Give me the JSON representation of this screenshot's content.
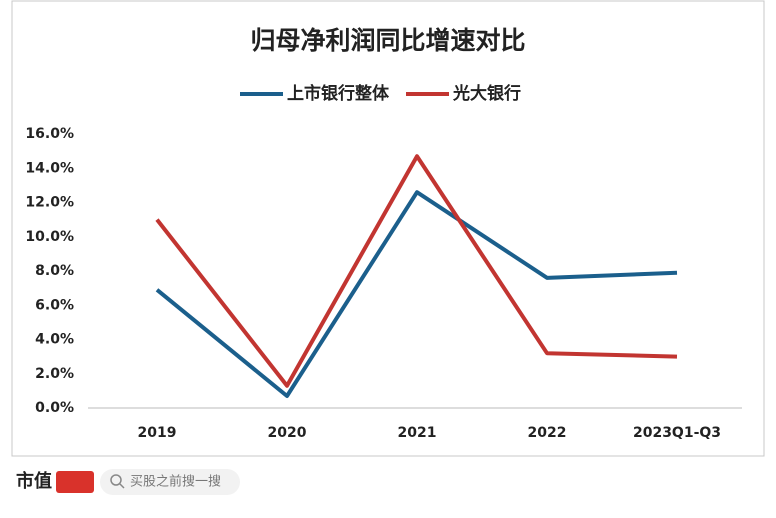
{
  "chart_data": {
    "type": "line",
    "title": "归母净利润同比增速对比",
    "categories": [
      "2019",
      "2020",
      "2021",
      "2022",
      "2023Q1-Q3"
    ],
    "series": [
      {
        "name": "上市银行整体",
        "color": "#1b5f8c",
        "values": [
          6.9,
          0.7,
          12.6,
          7.6,
          7.9
        ]
      },
      {
        "name": "光大银行",
        "color": "#c23531",
        "values": [
          11.0,
          1.3,
          14.7,
          3.2,
          3.0
        ]
      }
    ],
    "ylim": [
      0,
      16
    ],
    "yticks": [
      {
        "value": 0,
        "label": "0.0%"
      },
      {
        "value": 2,
        "label": "2.0%"
      },
      {
        "value": 4,
        "label": "4.0%"
      },
      {
        "value": 6,
        "label": "6.0%"
      },
      {
        "value": 8,
        "label": "8.0%"
      },
      {
        "value": 10,
        "label": "10.0%"
      },
      {
        "value": 12,
        "label": "12.0%"
      },
      {
        "value": 14,
        "label": "14.0%"
      },
      {
        "value": 16,
        "label": "16.0%"
      }
    ],
    "legend": "top"
  },
  "footer": {
    "logo": "市值",
    "search": "买股之前搜一搜"
  }
}
